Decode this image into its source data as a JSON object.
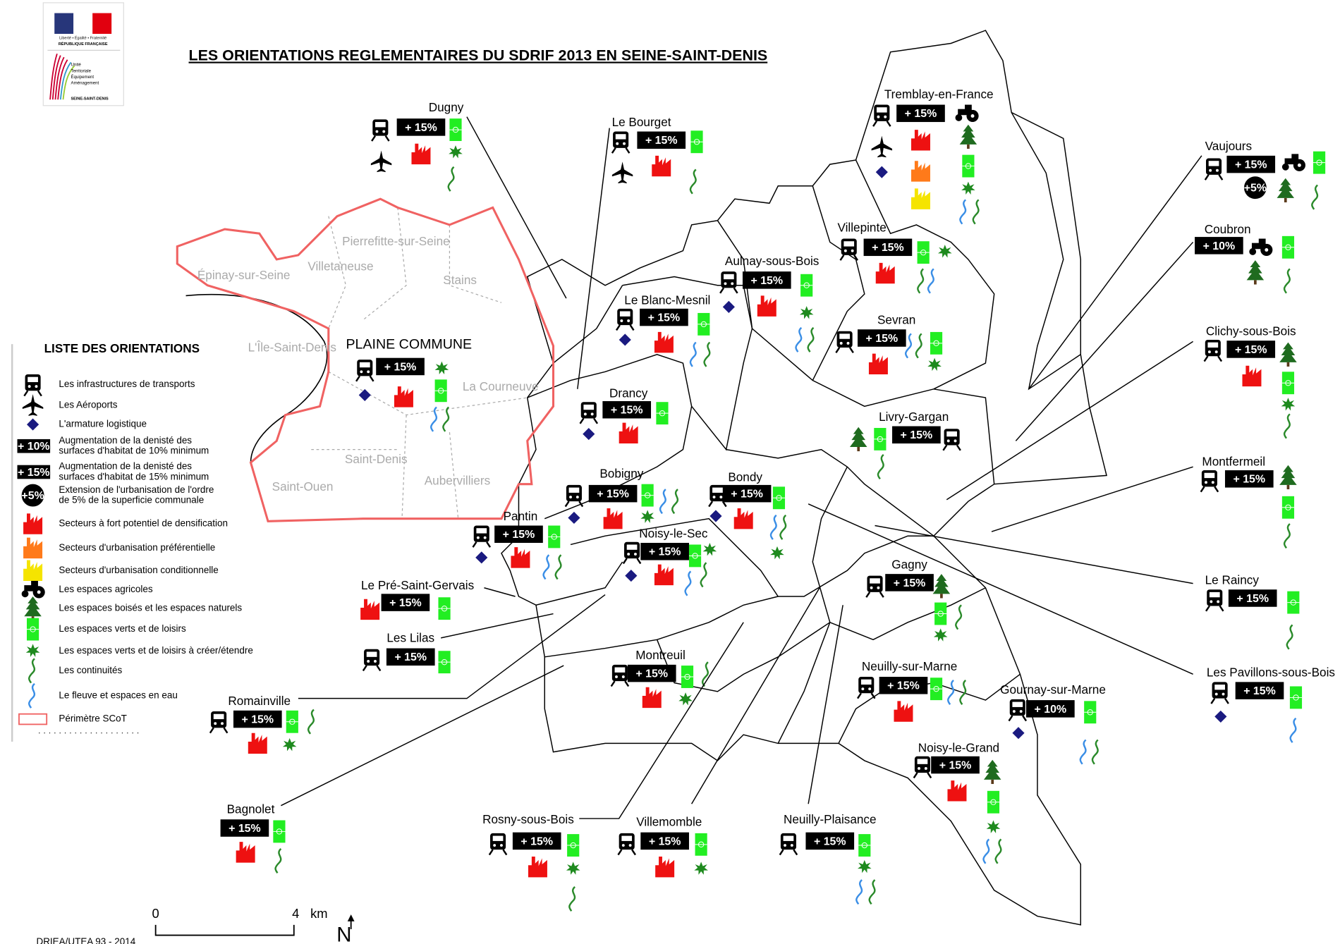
{
  "header": {
    "title": "LES ORIENTATIONS REGLEMENTAIRES DU SDRIF 2013 EN SEINE-SAINT-DENIS"
  },
  "logo": {
    "motto": "Liberté • Égalité • Fraternité",
    "republic": "RÉPUBLIQUE FRANÇAISE",
    "unit": [
      "Unité",
      "Territoriale",
      "Équipement",
      "Aménagement"
    ],
    "department": "SEINE-SAINT-DENIS"
  },
  "legend": {
    "title": "LISTE DES ORIENTATIONS",
    "items": [
      {
        "lines": [
          "Les infrastructures de transports"
        ]
      },
      {
        "lines": [
          "Les Aéroports"
        ]
      },
      {
        "lines": [
          "L'armature logistique"
        ]
      },
      {
        "badge": "+ 10%",
        "lines": [
          "Augmentation de la denisté des",
          "surfaces d'habitat de 10% minimum"
        ]
      },
      {
        "badge": "+ 15%",
        "lines": [
          "Augmentation de la denisté des",
          "surfaces d'habitat de 15% minimum"
        ]
      },
      {
        "badge": "+5%",
        "lines": [
          "Extension de l'urbanisation de l'ordre",
          "de 5% de la superficie communale"
        ]
      },
      {
        "lines": [
          "Secteurs à fort potentiel de densification"
        ]
      },
      {
        "lines": [
          "Secteurs d'urbanisation préférentielle"
        ]
      },
      {
        "lines": [
          "Secteurs d'urbanisation conditionnelle"
        ]
      },
      {
        "lines": [
          "Les espaces agricoles"
        ]
      },
      {
        "lines": [
          "Les espaces boisés et les espaces naturels"
        ]
      },
      {
        "lines": [
          "Les espaces verts et de loisirs"
        ]
      },
      {
        "lines": [
          "Les espaces verts et de loisirs à créer/étendre"
        ]
      },
      {
        "lines": [
          "Les continuités"
        ]
      },
      {
        "lines": [
          "Le fleuve et espaces en eau"
        ]
      },
      {
        "lines": [
          "Périmètre SCoT"
        ]
      }
    ]
  },
  "plaine_commune": {
    "name": "PLAINE COMMUNE",
    "badge": "+ 15%",
    "communes": [
      "Pierrefitte-sur-Seine",
      "Villetaneuse",
      "Stains",
      "Épinay-sur-Seine",
      "L'Île-Saint-Denis",
      "La Courneuve",
      "Saint-Denis",
      "Aubervilliers",
      "Saint-Ouen"
    ]
  },
  "communes": [
    {
      "name": "Dugny",
      "badge": "+ 15%"
    },
    {
      "name": "Le Bourget",
      "badge": "+ 15%"
    },
    {
      "name": "Tremblay-en-France",
      "badge": "+ 15%"
    },
    {
      "name": "Vaujours",
      "badge": "+ 15%",
      "extra": "+5%"
    },
    {
      "name": "Coubron",
      "badge": "+ 10%"
    },
    {
      "name": "Clichy-sous-Bois",
      "badge": "+ 15%"
    },
    {
      "name": "Montfermeil",
      "badge": "+ 15%"
    },
    {
      "name": "Le Raincy",
      "badge": "+ 15%"
    },
    {
      "name": "Les Pavillons-sous-Bois",
      "badge": "+ 15%"
    },
    {
      "name": "Gournay-sur-Marne",
      "badge": "+ 10%"
    },
    {
      "name": "Noisy-le-Grand",
      "badge": "+ 15%"
    },
    {
      "name": "Neuilly-sur-Marne",
      "badge": "+ 15%"
    },
    {
      "name": "Gagny",
      "badge": "+ 15%"
    },
    {
      "name": "Livry-Gargan",
      "badge": "+ 15%"
    },
    {
      "name": "Sevran",
      "badge": "+ 15%"
    },
    {
      "name": "Villepinte",
      "badge": "+ 15%"
    },
    {
      "name": "Aulnay-sous-Bois",
      "badge": "+ 15%"
    },
    {
      "name": "Le Blanc-Mesnil",
      "badge": "+ 15%"
    },
    {
      "name": "Drancy",
      "badge": "+ 15%"
    },
    {
      "name": "Bobigny",
      "badge": "+ 15%"
    },
    {
      "name": "Bondy",
      "badge": "+ 15%"
    },
    {
      "name": "Noisy-le-Sec",
      "badge": "+ 15%"
    },
    {
      "name": "Pantin",
      "badge": "+ 15%"
    },
    {
      "name": "Le Pré-Saint-Gervais",
      "badge": "+ 15%"
    },
    {
      "name": "Les Lilas",
      "badge": "+ 15%"
    },
    {
      "name": "Montreuil",
      "badge": "+ 15%"
    },
    {
      "name": "Romainville",
      "badge": "+ 15%"
    },
    {
      "name": "Bagnolet",
      "badge": "+ 15%"
    },
    {
      "name": "Rosny-sous-Bois",
      "badge": "+ 15%"
    },
    {
      "name": "Villemomble",
      "badge": "+ 15%"
    },
    {
      "name": "Neuilly-Plaisance",
      "badge": "+ 15%"
    }
  ],
  "scale": {
    "start": "0",
    "end": "4",
    "unit": "km"
  },
  "north": "N",
  "credit": "DRIEA/UTEA 93 - 2014"
}
